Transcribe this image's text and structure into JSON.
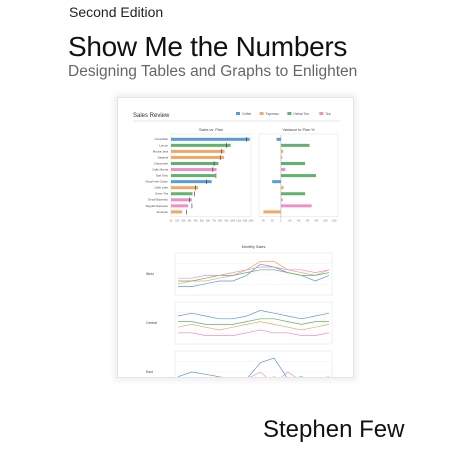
{
  "cover": {
    "edition": "Second Edition",
    "title": "Show Me the Numbers",
    "subtitle": "Designing Tables and Graphs to Enlighten",
    "author": "Stephen Few"
  },
  "dashboard": {
    "title": "Sales Review",
    "legend": [
      {
        "label": "Coffee",
        "color": "#5b9bd5"
      },
      {
        "label": "Espresso",
        "color": "#f0a868"
      },
      {
        "label": "Herbal Tea",
        "color": "#62b16e"
      },
      {
        "label": "Tea",
        "color": "#ee8fc6"
      }
    ]
  },
  "chart_data": [
    {
      "type": "bar",
      "title": "Sales vs. Plan",
      "categories": [
        "Columbian",
        "Lemon",
        "Mocha-Java",
        "Darjeela",
        "Chamomile",
        "Caffe Mocha",
        "Earl Grey",
        "Decaf Irish Cream",
        "Caffe Latte",
        "Green Tea",
        "Decaf Espresso",
        "Regular Espresso",
        "Amaretto"
      ],
      "category_colors": [
        "#5b9bd5",
        "#62b16e",
        "#f0a868",
        "#f0a868",
        "#62b16e",
        "#ee8fc6",
        "#62b16e",
        "#5b9bd5",
        "#f0a868",
        "#62b16e",
        "#ee8fc6",
        "#ee8fc6",
        "#f0a868"
      ],
      "values": [
        128000,
        97000,
        87000,
        86000,
        77000,
        74000,
        72000,
        66000,
        44000,
        35000,
        34000,
        28000,
        18000
      ],
      "plan": [
        123000,
        90000,
        82000,
        80000,
        70000,
        68000,
        73000,
        58000,
        40000,
        38000,
        30000,
        34000,
        25000
      ],
      "xticks": [
        "0k",
        "10k",
        "20k",
        "30k",
        "40k",
        "50k",
        "60k",
        "70k",
        "80k",
        "90k",
        "100k",
        "110k",
        "120k",
        "130k"
      ],
      "xlim": [
        0,
        130000
      ]
    },
    {
      "type": "bar",
      "title": "Variance to Plan %",
      "categories": [
        "Columbian",
        "Lemon",
        "Mocha-Java",
        "Darjeela",
        "Chamomile",
        "Caffe Mocha",
        "Earl Grey",
        "Decaf Irish Cream",
        "Caffe Latte",
        "Green Tea",
        "Decaf Espresso",
        "Regular Espresso",
        "Amaretto"
      ],
      "values": [
        -10,
        65,
        5,
        3,
        55,
        10,
        80,
        -20,
        6,
        55,
        4,
        70,
        -40
      ],
      "xticks": [
        "-40",
        "-20",
        "0",
        "+20",
        "+40",
        "+60",
        "+80",
        "+100",
        "+120"
      ],
      "xlim": [
        -50,
        130
      ]
    },
    {
      "type": "line",
      "title": "Monthly Sales",
      "x": [
        "Jan",
        "Feb",
        "Mar",
        "Apr",
        "May",
        "Jun",
        "Jul",
        "Aug",
        "Sep",
        "Oct",
        "Nov",
        "Dec"
      ],
      "panels": [
        {
          "name": "West",
          "series": [
            {
              "color": "#5b9bd5",
              "values": [
                66,
                66,
                67,
                68,
                68,
                70,
                74,
                73,
                71,
                70,
                68,
                70
              ]
            },
            {
              "color": "#f0a868",
              "values": [
                67,
                68,
                68,
                69,
                70,
                72,
                75,
                75,
                72,
                71,
                70,
                72
              ]
            },
            {
              "color": "#62b16e",
              "values": [
                68,
                68,
                69,
                70,
                70,
                71,
                72,
                72,
                71,
                70,
                70,
                71
              ]
            },
            {
              "color": "#ee8fc6",
              "values": [
                69,
                69,
                70,
                70,
                71,
                72,
                73,
                73,
                72,
                72,
                71,
                72
              ]
            }
          ]
        },
        {
          "name": "Central",
          "series": [
            {
              "color": "#5b9bd5",
              "values": [
                70,
                71,
                70,
                69,
                69,
                70,
                72,
                71,
                70,
                69,
                70,
                71
              ]
            },
            {
              "color": "#f0a868",
              "values": [
                66,
                67,
                66,
                65,
                66,
                67,
                68,
                67,
                66,
                65,
                66,
                67
              ]
            },
            {
              "color": "#62b16e",
              "values": [
                68,
                68,
                67,
                67,
                67,
                68,
                69,
                69,
                68,
                67,
                68,
                68
              ]
            },
            {
              "color": "#ee8fc6",
              "values": [
                64,
                64,
                63,
                63,
                63,
                64,
                65,
                64,
                64,
                63,
                63,
                64
              ]
            }
          ]
        },
        {
          "name": "East",
          "series": [
            {
              "color": "#5b9bd5",
              "values": [
                64,
                66,
                65,
                64,
                63,
                63,
                70,
                72,
                63,
                64,
                62,
                62
              ]
            },
            {
              "color": "#f0a868",
              "values": [
                62,
                62,
                63,
                64,
                62,
                62,
                62,
                64,
                62,
                63,
                63,
                64
              ]
            },
            {
              "color": "#62b16e",
              "values": [
                63,
                62,
                63,
                62,
                63,
                62,
                62,
                63,
                62,
                63,
                62,
                63
              ]
            },
            {
              "color": "#ee8fc6",
              "values": [
                60,
                61,
                60,
                61,
                62,
                63,
                66,
                61,
                66,
                62,
                62,
                63
              ]
            }
          ]
        }
      ]
    }
  ]
}
